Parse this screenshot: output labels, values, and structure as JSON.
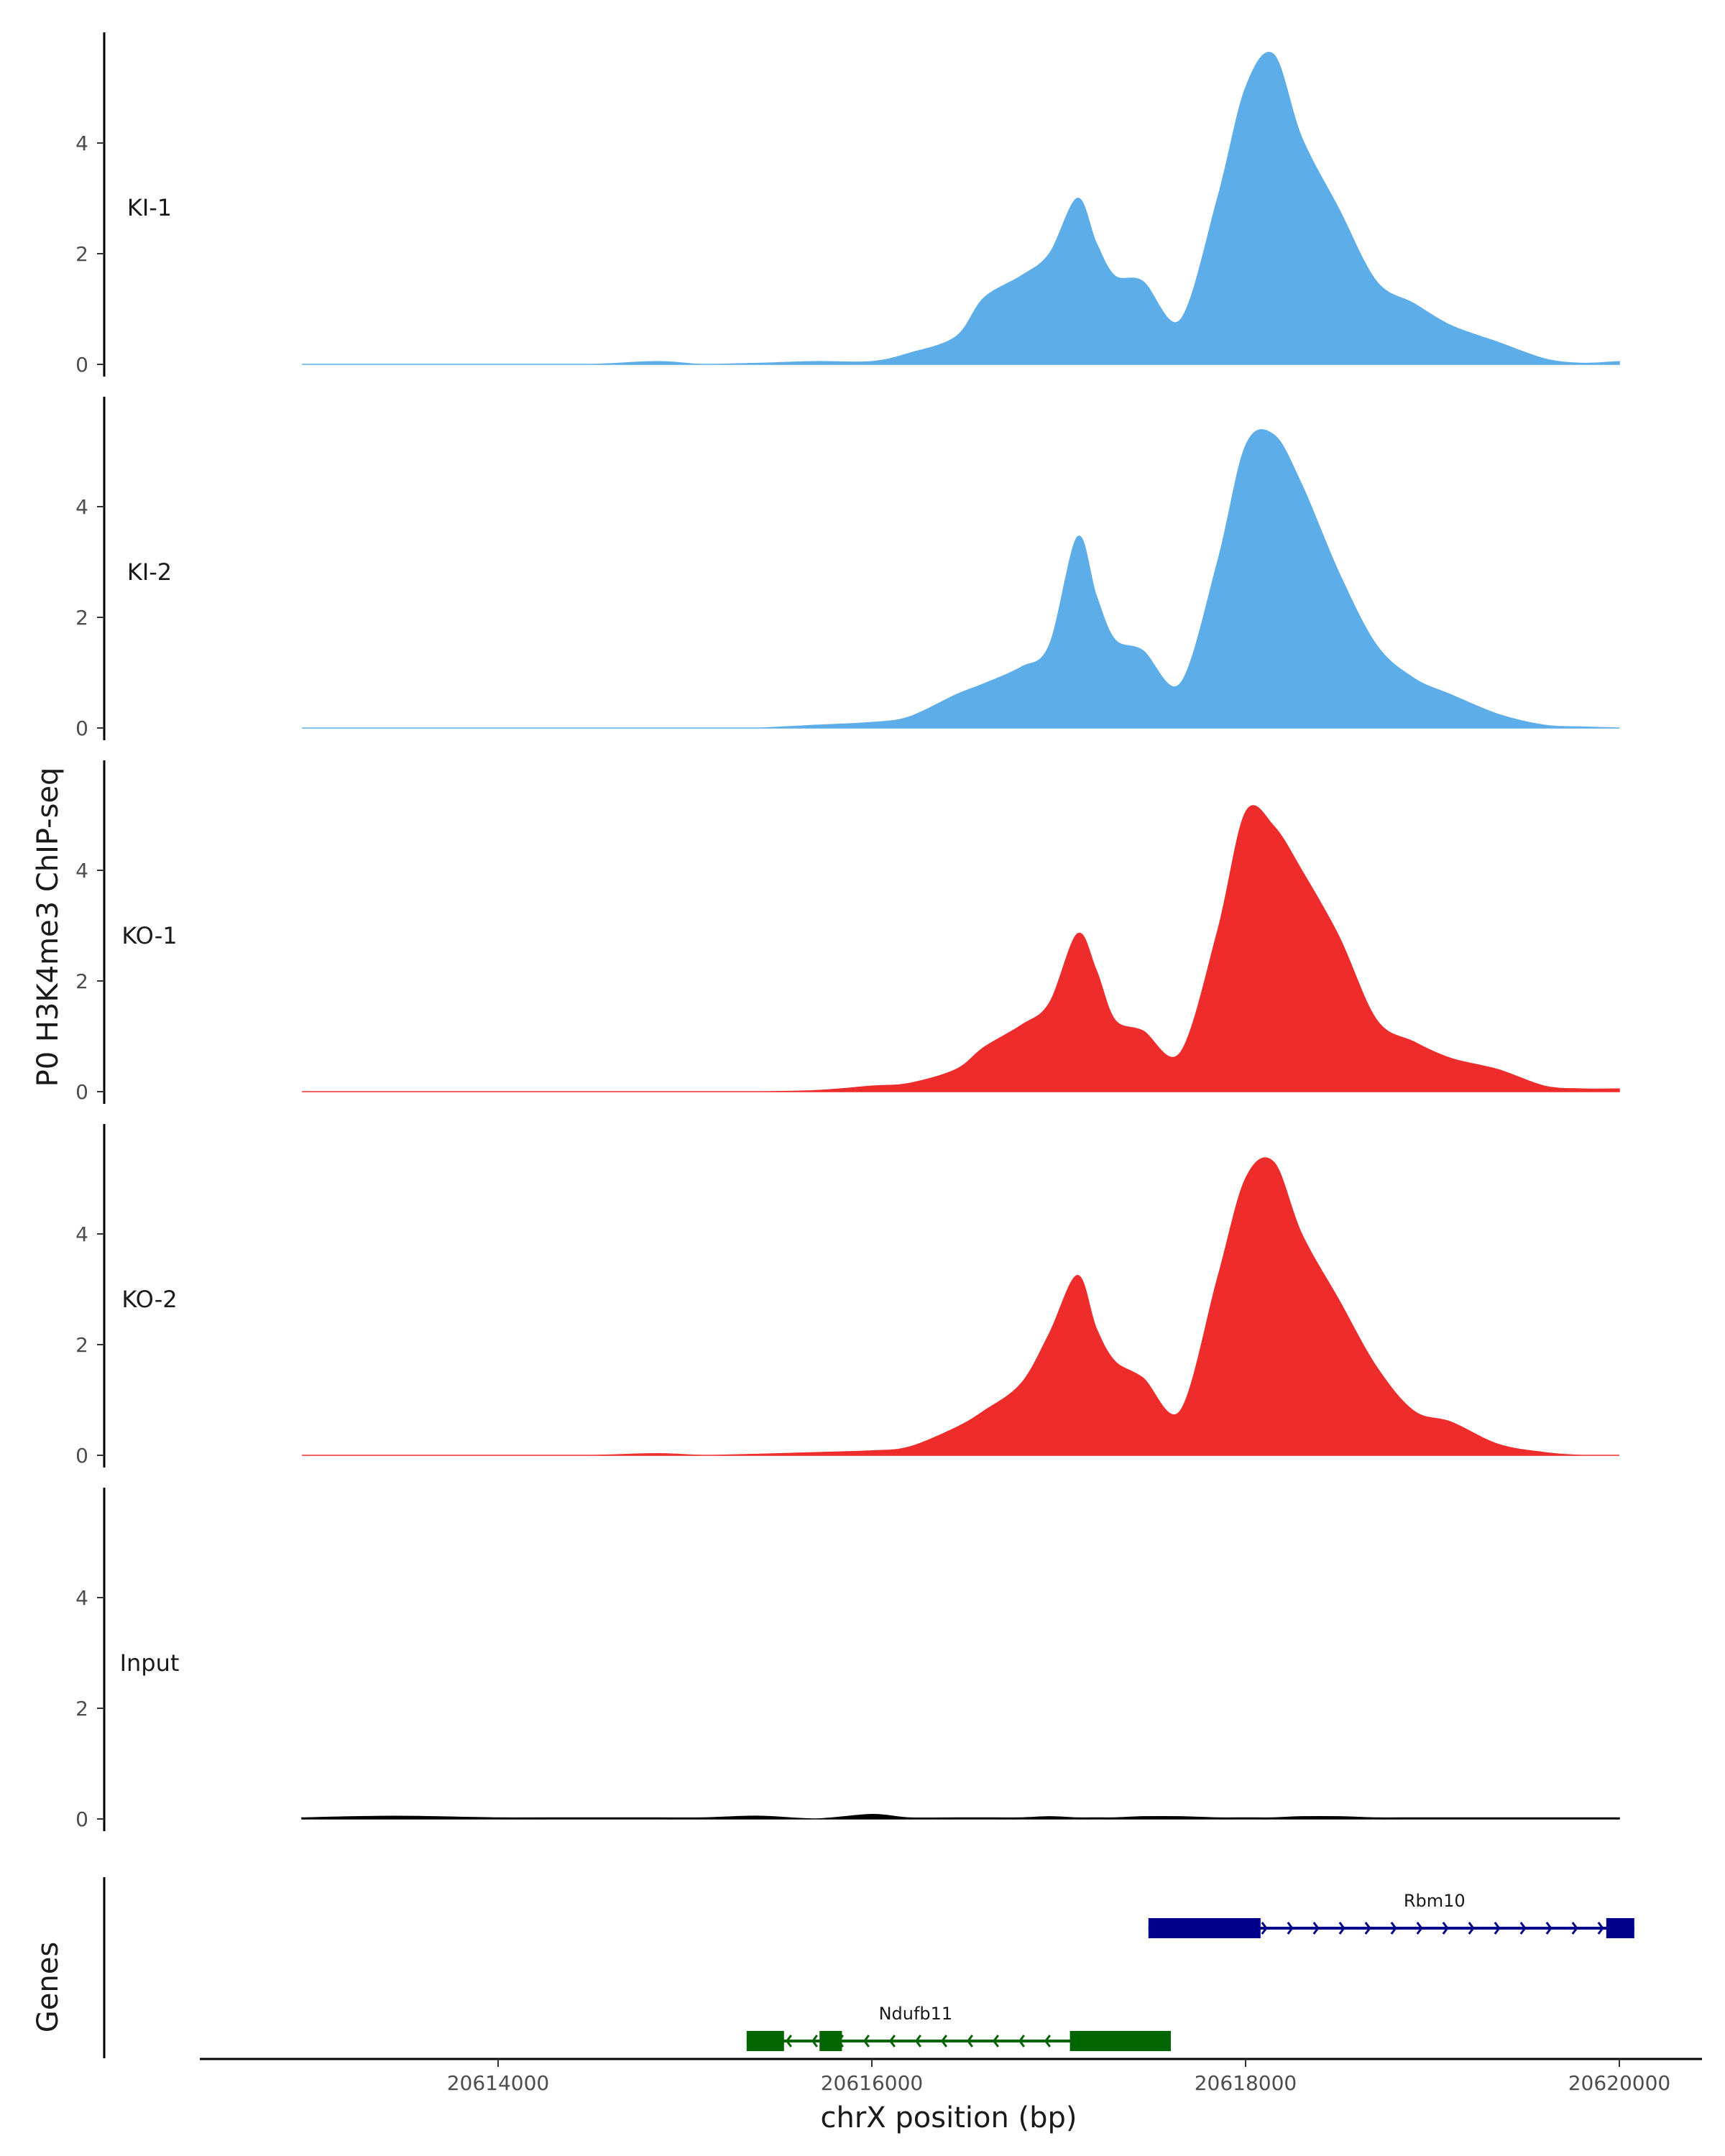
{
  "chart_data": {
    "type": "area",
    "ylabel": "P0 H3K4me3 ChIP-seq",
    "xlabel": "chrX position (bp)",
    "xlim": [
      20612500,
      20620500
    ],
    "ylim": [
      0,
      5.8
    ],
    "yticks": [
      0,
      2,
      4
    ],
    "xticks": [
      20614000,
      20616000,
      20618000,
      20620000
    ],
    "xtick_labels": [
      "20614000",
      "20616000",
      "20618000",
      "20620000"
    ],
    "x": [
      20612950,
      20613450,
      20614000,
      20614500,
      20614850,
      20615100,
      20615400,
      20615700,
      20616000,
      20616200,
      20616450,
      20616600,
      20616800,
      20616950,
      20617100,
      20617200,
      20617300,
      20617450,
      20617650,
      20617850,
      20618000,
      20618150,
      20618300,
      20618500,
      20618700,
      20618900,
      20619100,
      20619350,
      20619600,
      20619800,
      20620000
    ],
    "series": [
      {
        "name": "KI-1",
        "color": "#5dade9",
        "values": [
          0.0,
          0.0,
          0.0,
          0.0,
          0.05,
          0.0,
          0.02,
          0.05,
          0.05,
          0.2,
          0.5,
          1.2,
          1.6,
          2.0,
          3.0,
          2.2,
          1.6,
          1.5,
          0.8,
          3.0,
          5.0,
          5.6,
          4.1,
          2.8,
          1.5,
          1.1,
          0.7,
          0.4,
          0.1,
          0.02,
          0.05
        ]
      },
      {
        "name": "KI-2",
        "color": "#5dade9",
        "values": [
          0.0,
          0.0,
          0.0,
          0.0,
          0.0,
          0.0,
          0.0,
          0.05,
          0.1,
          0.2,
          0.6,
          0.8,
          1.1,
          1.5,
          3.45,
          2.4,
          1.6,
          1.4,
          0.8,
          3.0,
          5.1,
          5.3,
          4.4,
          2.8,
          1.5,
          0.9,
          0.6,
          0.25,
          0.05,
          0.02,
          0.0
        ]
      },
      {
        "name": "KO-1",
        "color": "#ee2c2c",
        "values": [
          0.0,
          0.0,
          0.0,
          0.0,
          0.0,
          0.0,
          0.0,
          0.02,
          0.1,
          0.15,
          0.4,
          0.8,
          1.2,
          1.6,
          2.85,
          2.2,
          1.3,
          1.1,
          0.7,
          2.9,
          5.05,
          4.8,
          4.0,
          2.8,
          1.3,
          0.9,
          0.6,
          0.4,
          0.1,
          0.05,
          0.05
        ]
      },
      {
        "name": "KO-2",
        "color": "#ee2c2c",
        "values": [
          0.0,
          0.0,
          0.0,
          0.0,
          0.03,
          0.0,
          0.02,
          0.05,
          0.08,
          0.15,
          0.5,
          0.8,
          1.3,
          2.2,
          3.25,
          2.3,
          1.7,
          1.4,
          0.8,
          3.2,
          5.0,
          5.3,
          4.0,
          2.8,
          1.6,
          0.8,
          0.6,
          0.2,
          0.05,
          0.0,
          0.0
        ]
      },
      {
        "name": "Input",
        "color": "#000000",
        "values": [
          0.02,
          0.05,
          0.02,
          0.02,
          0.02,
          0.02,
          0.05,
          0.0,
          0.08,
          0.02,
          0.02,
          0.02,
          0.02,
          0.04,
          0.02,
          0.02,
          0.02,
          0.04,
          0.04,
          0.02,
          0.02,
          0.02,
          0.04,
          0.04,
          0.02,
          0.02,
          0.02,
          0.02,
          0.02,
          0.02,
          0.02
        ]
      }
    ],
    "genes_panel": {
      "title": "Genes",
      "genes": [
        {
          "name": "Rbm10",
          "strand": "+",
          "color": "#00008b",
          "start": 20617480,
          "end": 20620080,
          "exons": [
            [
              20617480,
              20618080
            ],
            [
              20619930,
              20620080
            ]
          ]
        },
        {
          "name": "Ndufb11",
          "strand": "-",
          "color": "#006400",
          "start": 20615330,
          "end": 20617600,
          "exons": [
            [
              20615330,
              20615530
            ],
            [
              20615720,
              20615840
            ],
            [
              20617060,
              20617600
            ]
          ]
        }
      ]
    }
  }
}
